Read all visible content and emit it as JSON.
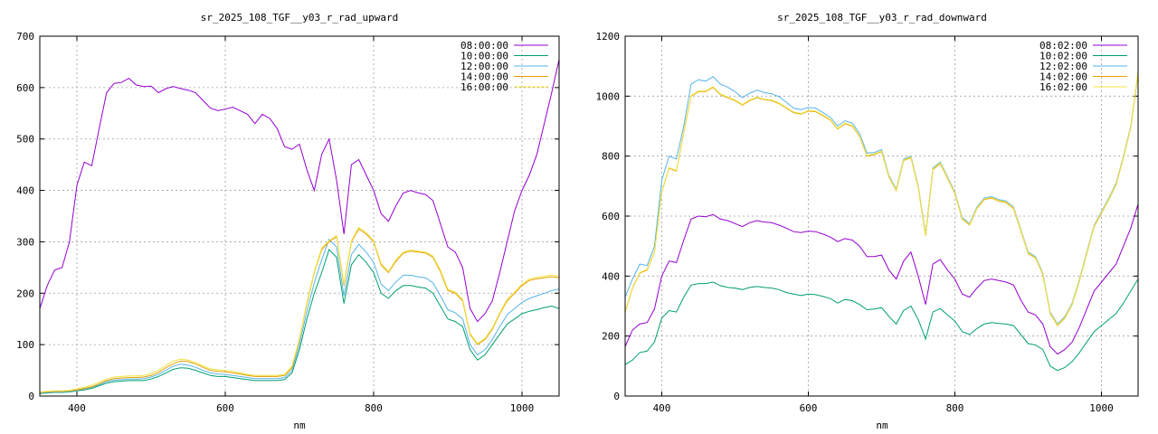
{
  "chart_data": [
    {
      "type": "line",
      "title": "sr_2025_108_TGF__y03_r_rad_upward",
      "xlabel": "nm",
      "ylabel": "",
      "xlim": [
        350,
        1050
      ],
      "ylim": [
        0,
        700
      ],
      "xticks": [
        400,
        600,
        800,
        1000
      ],
      "yticks": [
        0,
        100,
        200,
        300,
        400,
        500,
        600,
        700
      ],
      "grid": true,
      "legend_position": "top-right",
      "x": [
        350,
        360,
        370,
        380,
        390,
        400,
        410,
        420,
        430,
        440,
        450,
        460,
        470,
        480,
        490,
        500,
        510,
        520,
        530,
        540,
        550,
        560,
        570,
        580,
        590,
        600,
        610,
        620,
        630,
        640,
        650,
        660,
        670,
        680,
        690,
        700,
        710,
        720,
        730,
        740,
        750,
        760,
        770,
        780,
        790,
        800,
        810,
        820,
        830,
        840,
        850,
        860,
        870,
        880,
        890,
        900,
        910,
        920,
        930,
        940,
        950,
        960,
        970,
        980,
        990,
        1000,
        1010,
        1020,
        1030,
        1040,
        1050
      ],
      "series": [
        {
          "name": "08:00:00",
          "color": "#9400d3",
          "values": [
            170,
            215,
            245,
            250,
            300,
            410,
            455,
            448,
            520,
            590,
            608,
            610,
            618,
            605,
            602,
            603,
            590,
            598,
            602,
            598,
            595,
            590,
            575,
            560,
            555,
            558,
            562,
            555,
            548,
            530,
            548,
            540,
            520,
            485,
            480,
            490,
            440,
            400,
            470,
            500,
            420,
            315,
            450,
            460,
            430,
            400,
            355,
            340,
            370,
            395,
            400,
            395,
            392,
            380,
            335,
            290,
            280,
            250,
            170,
            145,
            160,
            185,
            240,
            300,
            360,
            400,
            430,
            470,
            530,
            590,
            655
          ]
        },
        {
          "name": "10:00:00",
          "color": "#009e73",
          "values": [
            5,
            6,
            7,
            7,
            8,
            10,
            12,
            15,
            20,
            25,
            28,
            29,
            30,
            30,
            30,
            33,
            38,
            45,
            52,
            55,
            54,
            50,
            45,
            40,
            38,
            38,
            36,
            34,
            32,
            30,
            30,
            30,
            30,
            32,
            45,
            90,
            150,
            200,
            240,
            285,
            270,
            180,
            255,
            275,
            260,
            240,
            200,
            190,
            205,
            215,
            215,
            212,
            210,
            200,
            175,
            150,
            145,
            135,
            90,
            70,
            80,
            100,
            120,
            140,
            150,
            160,
            165,
            168,
            172,
            175,
            170
          ]
        },
        {
          "name": "12:00:00",
          "color": "#56b4e9",
          "values": [
            6,
            7,
            8,
            8,
            9,
            11,
            14,
            17,
            22,
            28,
            31,
            32,
            33,
            33,
            34,
            37,
            42,
            50,
            58,
            62,
            60,
            56,
            50,
            45,
            43,
            42,
            40,
            38,
            36,
            34,
            34,
            34,
            34,
            36,
            50,
            100,
            165,
            220,
            265,
            305,
            290,
            195,
            275,
            295,
            280,
            260,
            218,
            205,
            222,
            235,
            235,
            232,
            230,
            220,
            195,
            168,
            162,
            150,
            100,
            80,
            90,
            110,
            135,
            158,
            170,
            182,
            190,
            195,
            200,
            205,
            208
          ]
        },
        {
          "name": "14:00:00",
          "color": "#e69f00",
          "values": [
            7,
            8,
            9,
            9,
            10,
            12,
            15,
            18,
            24,
            30,
            34,
            35,
            36,
            36,
            37,
            40,
            46,
            55,
            63,
            68,
            67,
            62,
            56,
            50,
            48,
            47,
            45,
            43,
            40,
            38,
            38,
            38,
            38,
            40,
            55,
            110,
            180,
            240,
            285,
            300,
            310,
            215,
            300,
            325,
            315,
            300,
            255,
            240,
            262,
            278,
            282,
            280,
            278,
            270,
            242,
            205,
            200,
            185,
            120,
            100,
            110,
            130,
            160,
            185,
            200,
            215,
            225,
            228,
            230,
            232,
            230
          ]
        },
        {
          "name": "16:00:00",
          "color": "#f0e442",
          "values": [
            8,
            9,
            10,
            10,
            11,
            14,
            17,
            21,
            27,
            33,
            37,
            38,
            39,
            39,
            40,
            44,
            50,
            60,
            68,
            72,
            70,
            65,
            59,
            53,
            51,
            50,
            48,
            45,
            42,
            40,
            40,
            40,
            40,
            42,
            58,
            112,
            182,
            242,
            288,
            302,
            312,
            218,
            302,
            328,
            318,
            302,
            258,
            242,
            265,
            280,
            284,
            282,
            280,
            272,
            245,
            208,
            202,
            188,
            122,
            102,
            112,
            132,
            162,
            188,
            202,
            218,
            228,
            231,
            233,
            235,
            233
          ]
        }
      ]
    },
    {
      "type": "line",
      "title": "sr_2025_108_TGF__y03_r_rad_downward",
      "xlabel": "nm",
      "ylabel": "",
      "xlim": [
        350,
        1050
      ],
      "ylim": [
        0,
        1200
      ],
      "xticks": [
        400,
        600,
        800,
        1000
      ],
      "yticks": [
        0,
        200,
        400,
        600,
        800,
        1000,
        1200
      ],
      "grid": true,
      "legend_position": "top-right",
      "x": [
        350,
        360,
        370,
        380,
        390,
        400,
        410,
        420,
        430,
        440,
        450,
        460,
        470,
        480,
        490,
        500,
        510,
        520,
        530,
        540,
        550,
        560,
        570,
        580,
        590,
        600,
        610,
        620,
        630,
        640,
        650,
        660,
        670,
        680,
        690,
        700,
        710,
        720,
        730,
        740,
        750,
        760,
        770,
        780,
        790,
        800,
        810,
        820,
        830,
        840,
        850,
        860,
        870,
        880,
        890,
        900,
        910,
        920,
        930,
        940,
        950,
        960,
        970,
        980,
        990,
        1000,
        1010,
        1020,
        1030,
        1040,
        1050
      ],
      "series": [
        {
          "name": "08:02:00",
          "color": "#9400d3",
          "values": [
            165,
            220,
            240,
            245,
            290,
            400,
            450,
            445,
            520,
            590,
            600,
            598,
            605,
            590,
            585,
            575,
            565,
            578,
            585,
            580,
            578,
            570,
            560,
            548,
            545,
            550,
            548,
            540,
            530,
            515,
            525,
            520,
            500,
            465,
            465,
            470,
            420,
            390,
            450,
            480,
            400,
            305,
            440,
            455,
            420,
            390,
            340,
            330,
            360,
            385,
            390,
            385,
            380,
            370,
            320,
            280,
            270,
            240,
            165,
            140,
            155,
            180,
            230,
            290,
            350,
            380,
            410,
            440,
            500,
            560,
            640
          ]
        },
        {
          "name": "10:02:00",
          "color": "#009e73",
          "values": [
            105,
            120,
            145,
            150,
            180,
            260,
            285,
            280,
            330,
            370,
            375,
            375,
            380,
            368,
            362,
            360,
            355,
            362,
            365,
            362,
            360,
            355,
            345,
            340,
            335,
            340,
            338,
            332,
            325,
            310,
            322,
            318,
            305,
            288,
            290,
            295,
            265,
            240,
            285,
            300,
            255,
            190,
            280,
            292,
            270,
            250,
            215,
            205,
            225,
            240,
            245,
            242,
            240,
            235,
            205,
            175,
            170,
            155,
            100,
            85,
            95,
            115,
            145,
            180,
            215,
            235,
            255,
            275,
            310,
            350,
            390
          ]
        },
        {
          "name": "12:02:00",
          "color": "#56b4e9",
          "values": [
            330,
            390,
            440,
            435,
            500,
            720,
            800,
            790,
            900,
            1040,
            1055,
            1050,
            1065,
            1040,
            1030,
            1015,
            995,
            1010,
            1020,
            1012,
            1008,
            998,
            980,
            960,
            955,
            962,
            960,
            945,
            930,
            900,
            918,
            910,
            875,
            810,
            812,
            822,
            735,
            690,
            790,
            800,
            700,
            540,
            760,
            780,
            730,
            680,
            595,
            575,
            630,
            660,
            665,
            655,
            650,
            630,
            555,
            480,
            465,
            410,
            280,
            240,
            265,
            310,
            390,
            480,
            570,
            615,
            660,
            710,
            800,
            900,
            1075
          ]
        },
        {
          "name": "14:02:00",
          "color": "#e69f00",
          "values": [
            280,
            360,
            410,
            420,
            480,
            680,
            760,
            750,
            880,
            1000,
            1015,
            1015,
            1030,
            1005,
            995,
            985,
            970,
            985,
            995,
            988,
            985,
            975,
            960,
            945,
            940,
            950,
            948,
            935,
            920,
            890,
            908,
            900,
            865,
            800,
            805,
            815,
            730,
            685,
            785,
            795,
            695,
            535,
            755,
            775,
            725,
            675,
            590,
            570,
            625,
            655,
            660,
            650,
            645,
            625,
            550,
            475,
            460,
            405,
            275,
            235,
            260,
            305,
            385,
            475,
            565,
            610,
            655,
            705,
            795,
            895,
            1080
          ]
        },
        {
          "name": "16:02:00",
          "color": "#f0e442",
          "values": [
            282,
            362,
            412,
            422,
            482,
            682,
            762,
            752,
            882,
            1002,
            1017,
            1017,
            1032,
            1007,
            997,
            987,
            972,
            987,
            997,
            990,
            987,
            977,
            962,
            947,
            942,
            952,
            950,
            937,
            922,
            892,
            910,
            902,
            867,
            802,
            807,
            817,
            732,
            687,
            787,
            797,
            697,
            537,
            757,
            777,
            727,
            677,
            592,
            572,
            627,
            657,
            662,
            652,
            647,
            627,
            552,
            477,
            462,
            407,
            277,
            237,
            262,
            307,
            387,
            477,
            567,
            612,
            657,
            707,
            797,
            897,
            1082
          ]
        }
      ]
    }
  ]
}
